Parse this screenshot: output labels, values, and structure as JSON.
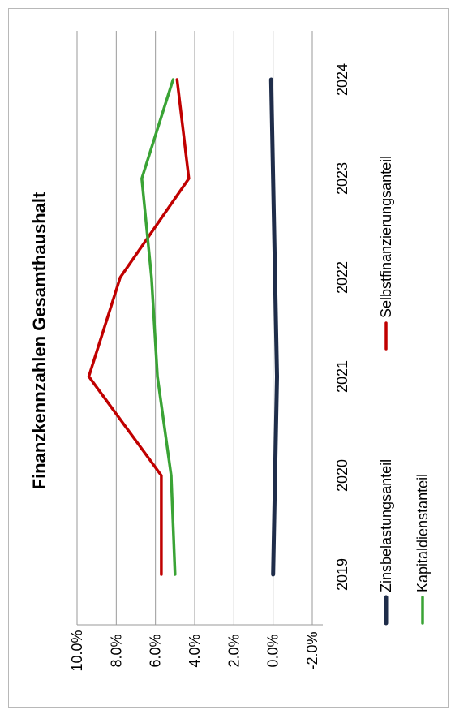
{
  "chart_data": {
    "type": "line",
    "orientation": "rotated-90-ccw",
    "title": "Finanzkennzahlen Gesamthaushalt",
    "categories": [
      "2019",
      "2020",
      "2021",
      "2022",
      "2023",
      "2024"
    ],
    "y_ticks": [
      "-2.0%",
      "0.0%",
      "2.0%",
      "4.0%",
      "6.0%",
      "8.0%",
      "10.0%"
    ],
    "ylim": [
      -2,
      10
    ],
    "grid": true,
    "legend_position": "bottom",
    "series": [
      {
        "name": "Zinsbelastungsanteil",
        "color": "#1f2d4a",
        "values": [
          0.0,
          -0.1,
          -0.2,
          -0.1,
          0.0,
          0.1
        ]
      },
      {
        "name": "Selbstfinanzierungsanteil",
        "color": "#c00000",
        "values": [
          5.7,
          5.7,
          9.4,
          7.8,
          4.3,
          4.9
        ]
      },
      {
        "name": "Kapitaldienstanteil",
        "color": "#3aa335",
        "values": [
          5.0,
          5.2,
          5.9,
          6.2,
          6.7,
          5.1
        ]
      }
    ]
  }
}
